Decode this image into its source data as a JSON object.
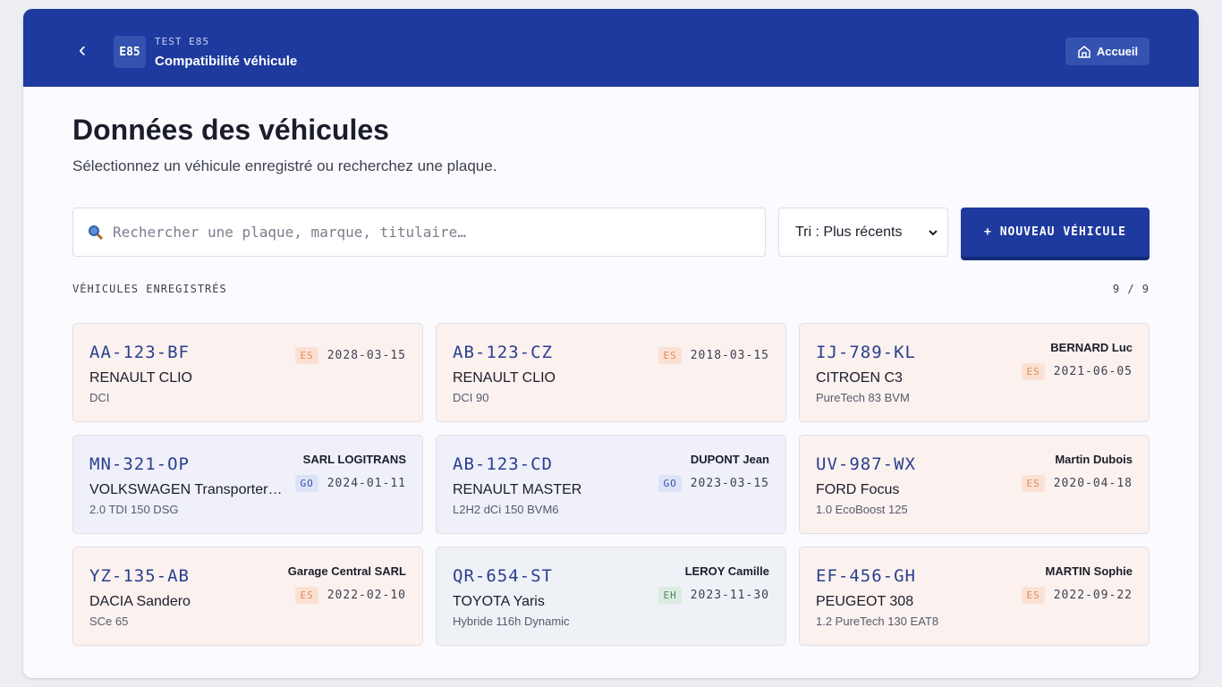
{
  "header": {
    "back": "‹",
    "badge": "E85",
    "kicker": "TEST E85",
    "title": "Compatibilité véhicule",
    "home": "Accueil"
  },
  "main": {
    "title": "Données des véhicules",
    "subtitle": "Sélectionnez un véhicule enregistré ou recherchez une plaque.",
    "search_placeholder": "Rechercher une plaque, marque, titulaire…",
    "sort": "Tri : Plus récents",
    "new_button": "+ NOUVEAU VÉHICULE",
    "section_label": "VÉHICULES ENREGISTRÉS",
    "count": "9 / 9"
  },
  "cards": [
    {
      "plate": "AA-123-BF",
      "owner": null,
      "model": "RENAULT CLIO",
      "variant": "DCI",
      "fuel": "ES",
      "date": "2028-03-15",
      "background": "#fbf1ef"
    },
    {
      "plate": "AB-123-CZ",
      "owner": null,
      "model": "RENAULT CLIO",
      "variant": "DCI 90",
      "fuel": "ES",
      "date": "2018-03-15",
      "background": "#fbf1ef"
    },
    {
      "plate": "IJ-789-KL",
      "owner": "BERNARD Luc",
      "model": "CITROEN C3",
      "variant": "PureTech 83 BVM",
      "fuel": "ES",
      "date": "2021-06-05",
      "background": "#fbf1ef"
    },
    {
      "plate": "MN-321-OP",
      "owner": "SARL LOGITRANS",
      "model": "VOLKSWAGEN Transporter…",
      "variant": "2.0 TDI 150 DSG",
      "fuel": "GO",
      "date": "2024-01-11",
      "background": "#eff0fa"
    },
    {
      "plate": "AB-123-CD",
      "owner": "DUPONT Jean",
      "model": "RENAULT MASTER",
      "variant": "L2H2 dCi 150 BVM6",
      "fuel": "GO",
      "date": "2023-03-15",
      "background": "#eff0fa"
    },
    {
      "plate": "UV-987-WX",
      "owner": "Martin Dubois",
      "model": "FORD Focus",
      "variant": "1.0 EcoBoost 125",
      "fuel": "ES",
      "date": "2020-04-18",
      "background": "#fbf1ef"
    },
    {
      "plate": "YZ-135-AB",
      "owner": "Garage Central SARL",
      "model": "DACIA Sandero",
      "variant": "SCe 65",
      "fuel": "ES",
      "date": "2022-02-10",
      "background": "#fbf1ef"
    },
    {
      "plate": "QR-654-ST",
      "owner": "LEROY Camille",
      "model": "TOYOTA Yaris",
      "variant": "Hybride 116h Dynamic",
      "fuel": "EH",
      "date": "2023-11-30",
      "background": "#eef1f5"
    },
    {
      "plate": "EF-456-GH",
      "owner": "MARTIN Sophie",
      "model": "PEUGEOT 308",
      "variant": "1.2 PureTech 130 EAT8",
      "fuel": "ES",
      "date": "2022-09-22",
      "background": "#fbf1ef"
    }
  ]
}
